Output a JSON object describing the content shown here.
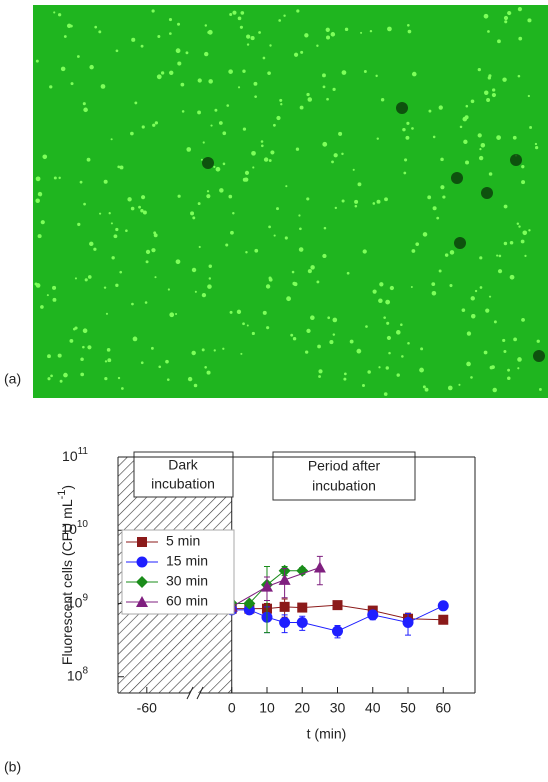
{
  "panel_a_label": "(a)",
  "chart_data": {
    "type": "scatter",
    "panel_label": "(b)",
    "x_label": "t (min)",
    "y_label": "Fluorescent cells (CFU mL",
    "y_label_sup": "-1",
    "y_label_end": ")",
    "log_y": true,
    "xlim": [
      -70,
      69
    ],
    "x_break": [
      -45,
      -9
    ],
    "shaded_xrange": [
      -70,
      0
    ],
    "ylim": [
      60000000,
      100000000000
    ],
    "xticks": [
      -60,
      0,
      10,
      20,
      30,
      40,
      50,
      60
    ],
    "yticks": [
      {
        "value": 100000000,
        "label": "10",
        "exponent": "8"
      },
      {
        "value": 1000000000,
        "label": "10",
        "exponent": "9"
      },
      {
        "value": 10000000000,
        "label": "10",
        "exponent": "10"
      },
      {
        "value": 100000000000,
        "label": "10",
        "exponent": "11"
      }
    ],
    "annotations": [
      "Dark",
      "incubation",
      "Period after",
      "incubation"
    ],
    "legend": "upper-left",
    "series": [
      {
        "name": "5 min",
        "color": "#8b1a1a",
        "marker": "square",
        "x": [
          0,
          5,
          10,
          15,
          20,
          30,
          40,
          50,
          60
        ],
        "values": [
          850000000,
          850000000,
          850000000,
          900000000,
          880000000,
          950000000,
          800000000,
          620000000,
          600000000
        ],
        "errors": [
          100000000,
          80000000,
          150000000,
          250000000,
          80000000,
          80000000,
          80000000,
          120000000,
          60000000
        ]
      },
      {
        "name": "15 min",
        "color": "#1f1fff",
        "marker": "circle",
        "x": [
          0,
          5,
          10,
          15,
          20,
          30,
          40,
          50,
          60
        ],
        "values": [
          820000000,
          820000000,
          650000000,
          550000000,
          550000000,
          420000000,
          700000000,
          550000000,
          930000000
        ],
        "errors": [
          80000000,
          80000000,
          250000000,
          150000000,
          120000000,
          80000000,
          100000000,
          180000000,
          80000000
        ]
      },
      {
        "name": "30 min",
        "color": "#1a8c1a",
        "marker": "diamond",
        "x": [
          0,
          5,
          10,
          15,
          20
        ],
        "values": [
          1000000000,
          1000000000,
          1800000000,
          2800000000,
          2800000000
        ],
        "errors": [
          100000000,
          100000000,
          1400000000,
          400000000,
          300000000
        ]
      },
      {
        "name": "60 min",
        "color": "#7f1f7f",
        "marker": "triangle",
        "x": [
          0,
          10,
          15,
          25
        ],
        "values": [
          900000000,
          1700000000,
          2100000000,
          3100000000
        ],
        "errors": [
          100000000,
          600000000,
          900000000,
          1300000000
        ]
      }
    ]
  }
}
